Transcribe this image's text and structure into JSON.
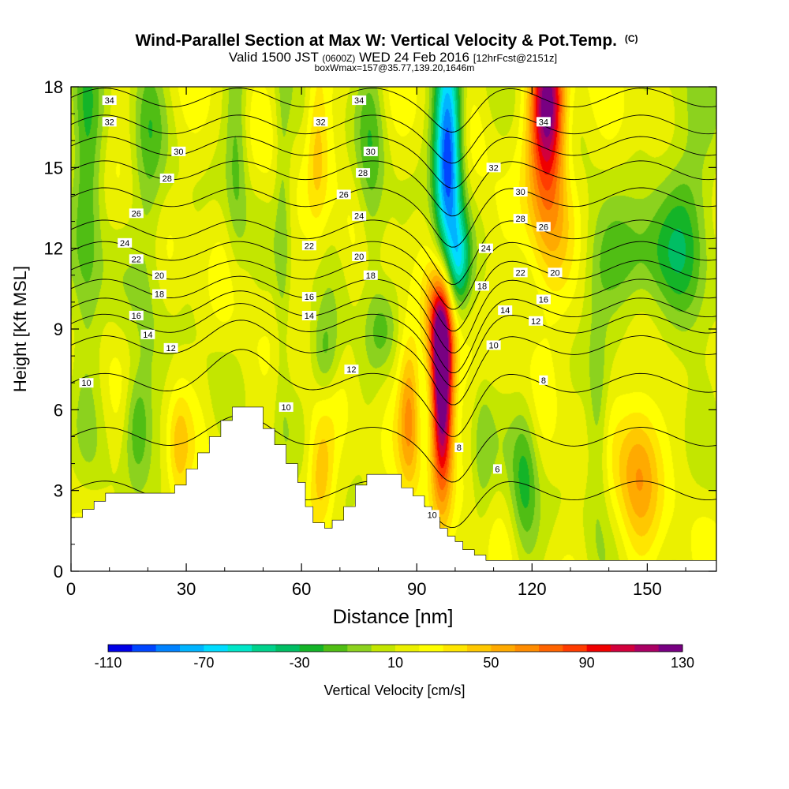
{
  "chart_data": {
    "type": "heatmap",
    "title": "Wind-Parallel Section at Max W: Vertical Velocity & Pot.Temp.",
    "title_mark": "(C)",
    "subtitle": {
      "prefix": "Valid 1500 JST",
      "utc": "(0600Z)",
      "date": "WED 24 Feb 2016",
      "forecast": "[12hrFcst@2151z]"
    },
    "note": "boxWmax=157@35.77,139.20,1646m",
    "xlabel": "Distance [nm]",
    "ylabel": "Height [Kft MSL]",
    "xlim": [
      0,
      168
    ],
    "ylim": [
      0,
      18
    ],
    "x_ticks": [
      0,
      30,
      60,
      90,
      120,
      150
    ],
    "y_ticks": [
      0,
      3,
      6,
      9,
      12,
      15,
      18
    ],
    "colorbar": {
      "label": "Vertical Velocity [cm/s]",
      "tick_labels": [
        -110,
        -70,
        -30,
        10,
        50,
        90,
        130
      ],
      "colors": [
        "#0000e6",
        "#0046ff",
        "#0082ff",
        "#00b4ff",
        "#00dcff",
        "#00e6c8",
        "#00d28c",
        "#00be64",
        "#14b428",
        "#50be14",
        "#8cd21e",
        "#c3e600",
        "#ebf000",
        "#ffff00",
        "#ffe600",
        "#ffc800",
        "#ffaa00",
        "#ff8c00",
        "#ff6400",
        "#ff3c00",
        "#f00000",
        "#d2003c",
        "#aa0064",
        "#780082"
      ]
    },
    "terrain_steps": [
      [
        0,
        2.0
      ],
      [
        3,
        2.3
      ],
      [
        6,
        2.6
      ],
      [
        9,
        2.9
      ],
      [
        24,
        2.9
      ],
      [
        27,
        3.2
      ],
      [
        30,
        3.8
      ],
      [
        33,
        4.4
      ],
      [
        36,
        5.0
      ],
      [
        39,
        5.6
      ],
      [
        42,
        6.1
      ],
      [
        48,
        6.1
      ],
      [
        50,
        5.3
      ],
      [
        53,
        4.7
      ],
      [
        56,
        4.0
      ],
      [
        59,
        3.3
      ],
      [
        61,
        2.4
      ],
      [
        63,
        1.8
      ],
      [
        66,
        1.6
      ],
      [
        68,
        1.9
      ],
      [
        71,
        2.4
      ],
      [
        74,
        3.2
      ],
      [
        77,
        3.6
      ],
      [
        83,
        3.6
      ],
      [
        86,
        3.1
      ],
      [
        89,
        2.8
      ],
      [
        92,
        2.4
      ],
      [
        94,
        2.0
      ],
      [
        96,
        1.6
      ],
      [
        98,
        1.3
      ],
      [
        100,
        1.1
      ],
      [
        102,
        0.8
      ],
      [
        105,
        0.6
      ],
      [
        108,
        0.4
      ],
      [
        168,
        0.4
      ]
    ],
    "w_features": [
      {
        "x": 96.5,
        "y": 6.5,
        "sx": 2.0,
        "sy": 2.5,
        "w": 130
      },
      {
        "x": 96.0,
        "y": 9.0,
        "sx": 2.5,
        "sy": 1.5,
        "w": 60
      },
      {
        "x": 98.0,
        "y": 15.5,
        "sx": 2.5,
        "sy": 3.0,
        "w": -115
      },
      {
        "x": 101.0,
        "y": 11.5,
        "sx": 2.0,
        "sy": 1.2,
        "w": -50
      },
      {
        "x": 124.0,
        "y": 17.5,
        "sx": 3.0,
        "sy": 1.8,
        "w": 95
      },
      {
        "x": 124.0,
        "y": 14.0,
        "sx": 4.0,
        "sy": 3.0,
        "w": 45
      },
      {
        "x": 118.0,
        "y": 3.5,
        "sx": 2.5,
        "sy": 2.2,
        "w": -35
      },
      {
        "x": 107.0,
        "y": 4.5,
        "sx": 2.0,
        "sy": 2.0,
        "w": -20
      },
      {
        "x": 148.0,
        "y": 4.0,
        "sx": 4.0,
        "sy": 2.0,
        "w": 45
      },
      {
        "x": 145.0,
        "y": 11.5,
        "sx": 8.0,
        "sy": 1.5,
        "w": -35
      },
      {
        "x": 160.0,
        "y": 13.0,
        "sx": 5.0,
        "sy": 4.0,
        "w": -30
      },
      {
        "x": 137.0,
        "y": 5.5,
        "sx": 2.0,
        "sy": 2.5,
        "w": -25
      },
      {
        "x": 4.0,
        "y": 14.0,
        "sx": 3.0,
        "sy": 5.0,
        "w": -35
      },
      {
        "x": 20.0,
        "y": 15.0,
        "sx": 3.0,
        "sy": 5.0,
        "w": -25
      },
      {
        "x": 43.0,
        "y": 16.0,
        "sx": 2.0,
        "sy": 3.5,
        "w": -25
      },
      {
        "x": 78.0,
        "y": 15.0,
        "sx": 2.5,
        "sy": 4.0,
        "w": -25
      },
      {
        "x": 64.0,
        "y": 16.0,
        "sx": 2.0,
        "sy": 2.5,
        "w": 25
      },
      {
        "x": 17.0,
        "y": 5.5,
        "sx": 2.5,
        "sy": 1.5,
        "w": -35
      },
      {
        "x": 66.0,
        "y": 8.0,
        "sx": 2.5,
        "sy": 1.2,
        "w": -30
      },
      {
        "x": 81.0,
        "y": 9.0,
        "sx": 2.5,
        "sy": 1.0,
        "w": -20
      },
      {
        "x": 88.0,
        "y": 6.0,
        "sx": 2.0,
        "sy": 2.0,
        "w": 45
      },
      {
        "x": 65.0,
        "y": 3.5,
        "sx": 2.5,
        "sy": 1.5,
        "w": 35
      },
      {
        "x": 28.0,
        "y": 4.5,
        "sx": 2.0,
        "sy": 1.5,
        "w": 25
      },
      {
        "x": 55.0,
        "y": 13.0,
        "sx": 1.5,
        "sy": 5.0,
        "w": -20
      }
    ],
    "theta_contours": [
      {
        "level": 34,
        "ylevel": 17.6
      },
      {
        "level": 32,
        "ylevel": 16.6
      },
      {
        "level": 30,
        "ylevel": 15.8
      },
      {
        "level": 28,
        "ylevel": 14.9
      },
      {
        "level": 26,
        "ylevel": 13.9
      },
      {
        "level": 24,
        "ylevel": 12.7
      },
      {
        "level": 22,
        "ylevel": 11.9
      },
      {
        "level": 20,
        "ylevel": 11.2
      },
      {
        "level": 18,
        "ylevel": 10.5
      },
      {
        "level": 16,
        "ylevel": 9.8
      },
      {
        "level": 14,
        "ylevel": 9.2
      },
      {
        "level": 12,
        "ylevel": 8.4
      },
      {
        "level": 10,
        "ylevel": 7.0
      },
      {
        "level": 8,
        "ylevel": 5.0
      },
      {
        "level": 6,
        "ylevel": 3.0
      }
    ],
    "contour_labels": [
      {
        "text": "34",
        "x": 10,
        "y": 17.5
      },
      {
        "text": "32",
        "x": 10,
        "y": 16.7
      },
      {
        "text": "30",
        "x": 28,
        "y": 15.6
      },
      {
        "text": "28",
        "x": 25,
        "y": 14.6
      },
      {
        "text": "26",
        "x": 17,
        "y": 13.3
      },
      {
        "text": "24",
        "x": 14,
        "y": 12.2
      },
      {
        "text": "22",
        "x": 17,
        "y": 11.6
      },
      {
        "text": "20",
        "x": 23,
        "y": 11.0
      },
      {
        "text": "18",
        "x": 23,
        "y": 10.3
      },
      {
        "text": "16",
        "x": 17,
        "y": 9.5
      },
      {
        "text": "14",
        "x": 20,
        "y": 8.8
      },
      {
        "text": "12",
        "x": 26,
        "y": 8.3
      },
      {
        "text": "10",
        "x": 4,
        "y": 7.0
      },
      {
        "text": "34",
        "x": 75,
        "y": 17.5
      },
      {
        "text": "32",
        "x": 65,
        "y": 16.7
      },
      {
        "text": "30",
        "x": 78,
        "y": 15.6
      },
      {
        "text": "28",
        "x": 76,
        "y": 14.8
      },
      {
        "text": "26",
        "x": 71,
        "y": 14.0
      },
      {
        "text": "24",
        "x": 75,
        "y": 13.2
      },
      {
        "text": "22",
        "x": 62,
        "y": 12.1
      },
      {
        "text": "20",
        "x": 75,
        "y": 11.7
      },
      {
        "text": "18",
        "x": 78,
        "y": 11.0
      },
      {
        "text": "16",
        "x": 62,
        "y": 10.2
      },
      {
        "text": "14",
        "x": 62,
        "y": 9.5
      },
      {
        "text": "12",
        "x": 73,
        "y": 7.5
      },
      {
        "text": "10",
        "x": 56,
        "y": 6.1
      },
      {
        "text": "34",
        "x": 123,
        "y": 16.7
      },
      {
        "text": "32",
        "x": 110,
        "y": 15.0
      },
      {
        "text": "30",
        "x": 117,
        "y": 14.1
      },
      {
        "text": "28",
        "x": 117,
        "y": 13.1
      },
      {
        "text": "26",
        "x": 123,
        "y": 12.8
      },
      {
        "text": "24",
        "x": 108,
        "y": 12.0
      },
      {
        "text": "22",
        "x": 117,
        "y": 11.1
      },
      {
        "text": "20",
        "x": 126,
        "y": 11.1
      },
      {
        "text": "18",
        "x": 107,
        "y": 10.6
      },
      {
        "text": "16",
        "x": 123,
        "y": 10.1
      },
      {
        "text": "14",
        "x": 113,
        "y": 9.7
      },
      {
        "text": "12",
        "x": 121,
        "y": 9.3
      },
      {
        "text": "10",
        "x": 110,
        "y": 8.4
      },
      {
        "text": "8",
        "x": 123,
        "y": 7.1
      },
      {
        "text": "8",
        "x": 101,
        "y": 4.6
      },
      {
        "text": "6",
        "x": 111,
        "y": 3.8
      },
      {
        "text": "10",
        "x": 94,
        "y": 2.1
      }
    ]
  }
}
